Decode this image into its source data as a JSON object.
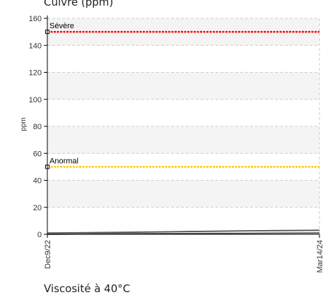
{
  "header": {
    "title": "Cuivre (ppm)"
  },
  "footer": {
    "text": "Viscosité à 40°C"
  },
  "chart_data": {
    "type": "line",
    "title": "Cuivre (ppm)",
    "xlabel": "",
    "ylabel": "ppm",
    "ylim": [
      0,
      160
    ],
    "y_ticks": [
      0,
      20,
      40,
      60,
      80,
      100,
      120,
      140,
      160
    ],
    "x_tick_labels": [
      "Dec9/22",
      "Mar14/24"
    ],
    "grid": true,
    "thresholds": [
      {
        "label": "Sévère",
        "value": 150,
        "color": "#ff0000"
      },
      {
        "label": "Anormal",
        "value": 50,
        "color": "#ffcc00"
      }
    ],
    "series": [
      {
        "values": [
          1,
          1.4,
          2,
          2.6,
          3
        ]
      },
      {
        "values": [
          0,
          0.4,
          0.6,
          0.8,
          1
        ]
      }
    ],
    "colors": {
      "series": "#555555",
      "band": "#f4f4f4",
      "grid": "#cccccc",
      "axis": "#000000"
    }
  }
}
